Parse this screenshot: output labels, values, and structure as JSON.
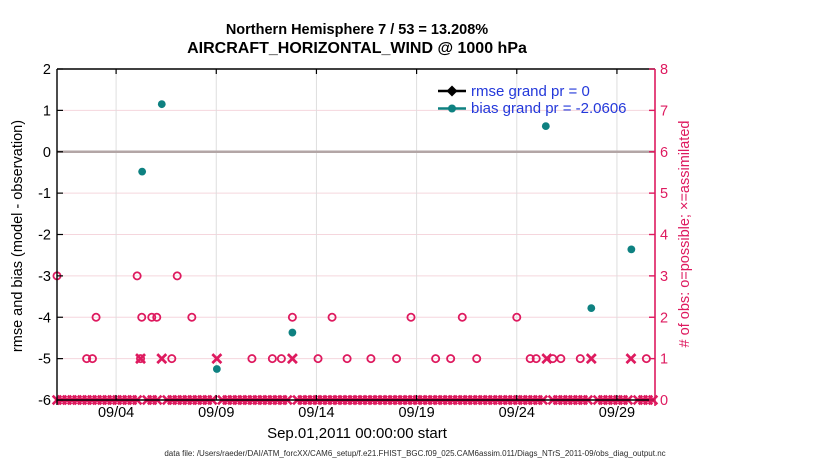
{
  "chart_data": {
    "type": "scatter",
    "title": "Northern Hemisphere 7 / 53 = 13.208%",
    "subtitle": "AIRCRAFT_HORIZONTAL_WIND @ 1000 hPa",
    "xlabel": "Sep.01,2011 00:00:00 start",
    "datafile_note": "data file: /Users/raeder/DAI/ATM_forcXX/CAM6_setup/f.e21.FHIST_BGC.f09_025.CAM6assim.011/Diags_NTrS_2011-09/obs_diag_output.nc",
    "x_axis": {
      "range_days": [
        1.05,
        30.9
      ],
      "ticks": [
        {
          "day": 4,
          "label": "09/04"
        },
        {
          "day": 9,
          "label": "09/09"
        },
        {
          "day": 14,
          "label": "09/14"
        },
        {
          "day": 19,
          "label": "09/19"
        },
        {
          "day": 24,
          "label": "09/24"
        },
        {
          "day": 29,
          "label": "09/29"
        }
      ]
    },
    "y_left": {
      "label": "rmse and bias (model - observation)",
      "min": -6,
      "max": 2,
      "ticks": [
        2,
        1,
        0,
        -1,
        -2,
        -3,
        -4,
        -5,
        -6
      ]
    },
    "y_right": {
      "label": "# of obs: o=possible; ×=assimilated",
      "min": 0,
      "max": 8,
      "ticks": [
        8,
        7,
        6,
        5,
        4,
        3,
        2,
        1,
        0
      ]
    },
    "legend": [
      {
        "label": "rmse grand pr = 0",
        "series": "rmse",
        "color": "#000000",
        "marker": "diamond"
      },
      {
        "label": "bias grand pr = -2.0606",
        "series": "bias",
        "color": "#0E8181",
        "marker": "circle"
      }
    ],
    "series": {
      "rmse_points": [],
      "bias_points": [
        [
          5.3,
          -0.48
        ],
        [
          6.28,
          1.15
        ],
        [
          9.03,
          -5.25
        ],
        [
          12.8,
          -4.37
        ],
        [
          25.45,
          0.62
        ],
        [
          27.72,
          -3.78
        ],
        [
          29.72,
          -2.36
        ]
      ],
      "obs_possible": [
        [
          1.05,
          3
        ],
        [
          5.05,
          3
        ],
        [
          7.05,
          3
        ],
        [
          3.0,
          2
        ],
        [
          5.28,
          2
        ],
        [
          5.78,
          2
        ],
        [
          6.03,
          2
        ],
        [
          7.78,
          2
        ],
        [
          12.8,
          2
        ],
        [
          14.78,
          2
        ],
        [
          18.72,
          2
        ],
        [
          21.28,
          2
        ],
        [
          24.0,
          2
        ],
        [
          2.53,
          1
        ],
        [
          2.82,
          1
        ],
        [
          5.22,
          1
        ],
        [
          6.78,
          1
        ],
        [
          10.78,
          1
        ],
        [
          11.8,
          1
        ],
        [
          12.25,
          1
        ],
        [
          14.08,
          1
        ],
        [
          15.53,
          1
        ],
        [
          16.72,
          1
        ],
        [
          18.0,
          1
        ],
        [
          19.95,
          1
        ],
        [
          20.7,
          1
        ],
        [
          22.0,
          1
        ],
        [
          24.67,
          1
        ],
        [
          24.97,
          1
        ],
        [
          25.8,
          1
        ],
        [
          26.2,
          1
        ],
        [
          27.17,
          1
        ],
        [
          30.47,
          1
        ]
      ],
      "obs_assimilated": [
        [
          5.22,
          1
        ],
        [
          6.28,
          1
        ],
        [
          9.03,
          1
        ],
        [
          12.8,
          1
        ],
        [
          25.5,
          1
        ],
        [
          27.72,
          1
        ],
        [
          29.7,
          1
        ]
      ],
      "assimilated_zero_row": {
        "start_day": 1.05,
        "end_day": 30.88,
        "step_days": 0.25,
        "value": 0,
        "gap_days": [
          5.25,
          6.25,
          9.0,
          12.75,
          25.5,
          27.75,
          29.75
        ]
      }
    },
    "colors": {
      "bias": "#0E8181",
      "obs": "#DE1A5F",
      "legend_text": "#2338DA",
      "zero_line": "#B3A6A6",
      "hgrid": "#F5D6DD",
      "vgrid": "#DEDEDE",
      "axis": "#000000"
    }
  }
}
